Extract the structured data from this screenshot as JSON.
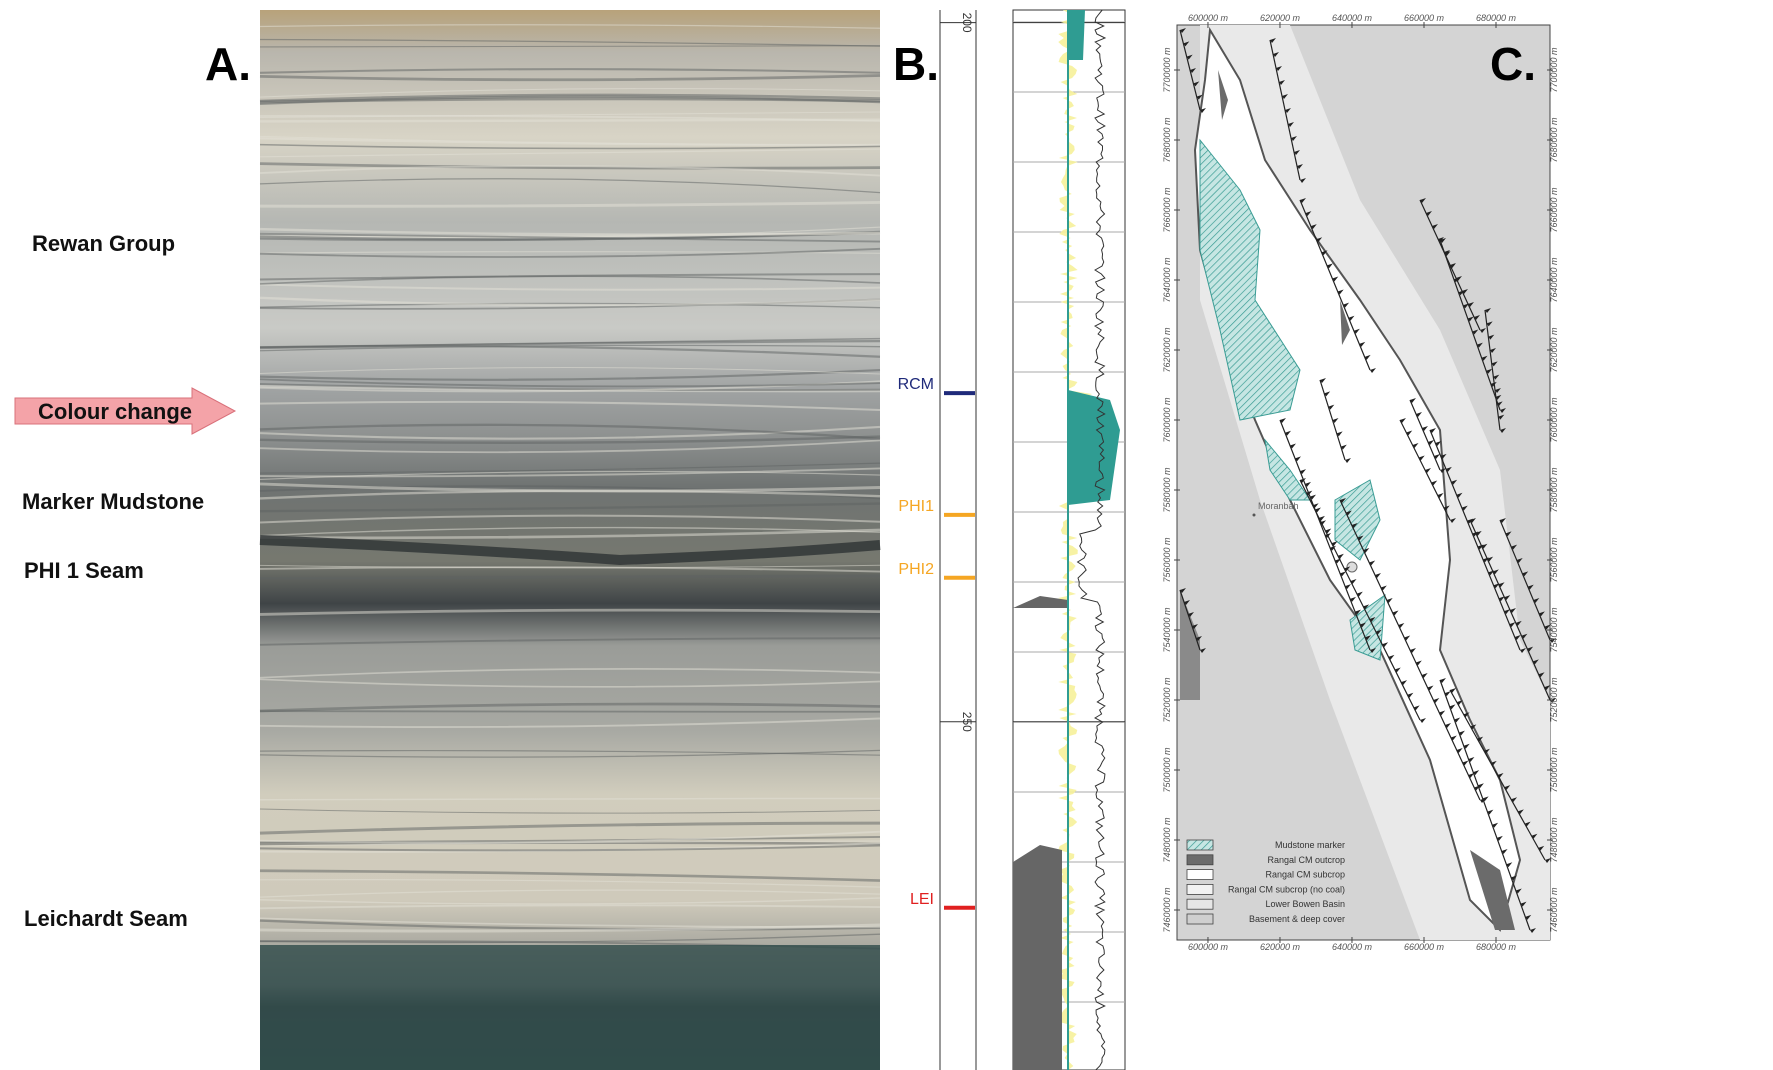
{
  "panels": {
    "a": "A.",
    "b": "B.",
    "c": "C."
  },
  "photo_labels": {
    "rewan": "Rewan Group",
    "colour_change": "Colour change",
    "marker_mudstone": "Marker Mudstone",
    "phi1_seam": "PHI 1 Seam",
    "leichardt": "Leichardt Seam"
  },
  "log": {
    "depth_lim": [
      199.1,
      274.9
    ],
    "depth_ticks": [
      200,
      250
    ],
    "markers": [
      {
        "label": "RCM",
        "depth": 226.5,
        "color": "#1f2a7a"
      },
      {
        "label": "PHI1",
        "depth": 235.2,
        "color": "#f5a623"
      },
      {
        "label": "PHI2",
        "depth": 239.7,
        "color": "#f5a623"
      },
      {
        "label": "LEI",
        "depth": 263.3,
        "color": "#e02020"
      }
    ]
  },
  "map": {
    "xlim": [
      591400,
      695000
    ],
    "ylim": [
      7712860,
      7451430
    ],
    "xticks": [
      {
        "value": 600000,
        "label": "600000 m"
      },
      {
        "value": 620000,
        "label": "620000 m"
      },
      {
        "value": 640000,
        "label": "640000 m"
      },
      {
        "value": 660000,
        "label": "660000 m"
      },
      {
        "value": 680000,
        "label": "680000 m"
      }
    ],
    "yticks": [
      {
        "value": 7700000,
        "label": "7700000 m"
      },
      {
        "value": 7680000,
        "label": "7680000 m"
      },
      {
        "value": 7660000,
        "label": "7660000 m"
      },
      {
        "value": 7640000,
        "label": "7640000 m"
      },
      {
        "value": 7620000,
        "label": "7620000 m"
      },
      {
        "value": 7600000,
        "label": "7600000 m"
      },
      {
        "value": 7580000,
        "label": "7580000 m"
      },
      {
        "value": 7560000,
        "label": "7560000 m"
      },
      {
        "value": 7540000,
        "label": "7540000 m"
      },
      {
        "value": 7520000,
        "label": "7520000 m"
      },
      {
        "value": 7500000,
        "label": "7500000 m"
      },
      {
        "value": 7480000,
        "label": "7480000 m"
      },
      {
        "value": 7460000,
        "label": "7460000 m"
      }
    ],
    "town": "Moranbah",
    "legend": [
      {
        "label": "Mudstone marker",
        "color": "#5fb8b0"
      },
      {
        "label": "Rangal CM outcrop",
        "color": "#6b6b6b"
      },
      {
        "label": "Rangal CM subcrop",
        "color": "#ffffff"
      },
      {
        "label": "Rangal CM subcrop (no coal)",
        "color": "#f2f2f2"
      },
      {
        "label": "Lower Bowen Basin",
        "color": "#e6e6e6"
      },
      {
        "label": "Basement & deep cover",
        "color": "#cfcfcf"
      }
    ]
  }
}
